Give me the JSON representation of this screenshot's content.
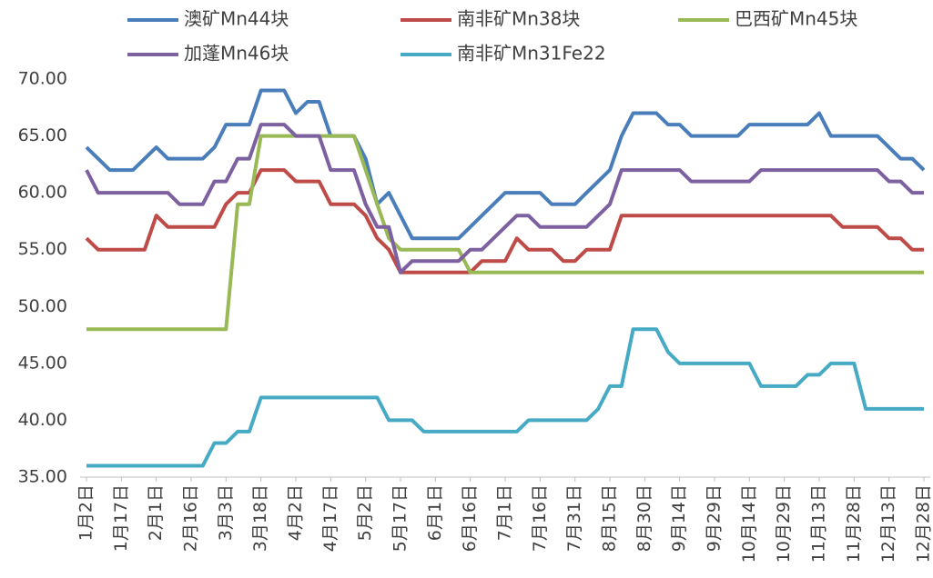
{
  "chart_data": {
    "type": "line",
    "categories": [
      "1月2日",
      null,
      null,
      "1月17日",
      null,
      null,
      "2月1日",
      null,
      null,
      "2月16日",
      null,
      null,
      "3月3日",
      null,
      null,
      "3月18日",
      null,
      null,
      "4月2日",
      null,
      null,
      "4月17日",
      null,
      null,
      "5月2日",
      null,
      null,
      "5月17日",
      null,
      null,
      "6月1日",
      null,
      null,
      "6月16日",
      null,
      null,
      "7月1日",
      null,
      null,
      "7月16日",
      null,
      null,
      "7月31日",
      null,
      null,
      "8月15日",
      null,
      null,
      "8月30日",
      null,
      null,
      "9月14日",
      null,
      null,
      "9月29日",
      null,
      null,
      "10月14日",
      null,
      null,
      "10月29日",
      null,
      null,
      "11月13日",
      null,
      null,
      "11月28日",
      null,
      null,
      "12月13日",
      null,
      null,
      "12月28日"
    ],
    "series": [
      {
        "name": "澳矿Mn44块",
        "color": "#4a7ebb",
        "values": [
          64,
          63,
          62,
          62,
          62,
          63,
          64,
          63,
          63,
          63,
          63,
          64,
          66,
          66,
          66,
          69,
          69,
          69,
          67,
          68,
          68,
          65,
          65,
          65,
          63,
          59,
          60,
          58,
          56,
          56,
          56,
          56,
          56,
          57,
          58,
          59,
          60,
          60,
          60,
          60,
          59,
          59,
          59,
          60,
          61,
          62,
          65,
          67,
          67,
          67,
          66,
          66,
          65,
          65,
          65,
          65,
          65,
          66,
          66,
          66,
          66,
          66,
          66,
          67,
          65,
          65,
          65,
          65,
          65,
          64,
          63,
          63,
          62
        ]
      },
      {
        "name": "南非矿Mn38块",
        "color": "#be4b48",
        "values": [
          56,
          55,
          55,
          55,
          55,
          55,
          58,
          57,
          57,
          57,
          57,
          57,
          59,
          60,
          60,
          62,
          62,
          62,
          61,
          61,
          61,
          59,
          59,
          59,
          58,
          56,
          55,
          53,
          53,
          53,
          53,
          53,
          53,
          53,
          54,
          54,
          54,
          56,
          55,
          55,
          55,
          54,
          54,
          55,
          55,
          55,
          58,
          58,
          58,
          58,
          58,
          58,
          58,
          58,
          58,
          58,
          58,
          58,
          58,
          58,
          58,
          58,
          58,
          58,
          58,
          57,
          57,
          57,
          57,
          56,
          56,
          55,
          55
        ]
      },
      {
        "name": "巴西矿Mn45块",
        "color": "#98b954",
        "values": [
          48,
          48,
          48,
          48,
          48,
          48,
          48,
          48,
          48,
          48,
          48,
          48,
          48,
          59,
          59,
          65,
          65,
          65,
          65,
          65,
          65,
          65,
          65,
          65,
          62,
          59,
          56,
          55,
          55,
          55,
          55,
          55,
          55,
          53,
          53,
          53,
          53,
          53,
          53,
          53,
          53,
          53,
          53,
          53,
          53,
          53,
          53,
          53,
          53,
          53,
          53,
          53,
          53,
          53,
          53,
          53,
          53,
          53,
          53,
          53,
          53,
          53,
          53,
          53,
          53,
          53,
          53,
          53,
          53,
          53,
          53,
          53,
          53
        ]
      },
      {
        "name": "加蓬Mn46块",
        "color": "#7d60a0",
        "values": [
          62,
          60,
          60,
          60,
          60,
          60,
          60,
          60,
          59,
          59,
          59,
          61,
          61,
          63,
          63,
          66,
          66,
          66,
          65,
          65,
          65,
          62,
          62,
          62,
          59,
          57,
          57,
          53,
          54,
          54,
          54,
          54,
          54,
          55,
          55,
          56,
          57,
          58,
          58,
          57,
          57,
          57,
          57,
          57,
          58,
          59,
          62,
          62,
          62,
          62,
          62,
          62,
          61,
          61,
          61,
          61,
          61,
          61,
          62,
          62,
          62,
          62,
          62,
          62,
          62,
          62,
          62,
          62,
          62,
          61,
          61,
          60,
          60
        ]
      },
      {
        "name": "南非矿Mn31Fe22",
        "color": "#46aac5",
        "values": [
          36,
          36,
          36,
          36,
          36,
          36,
          36,
          36,
          36,
          36,
          36,
          38,
          38,
          39,
          39,
          42,
          42,
          42,
          42,
          42,
          42,
          42,
          42,
          42,
          42,
          42,
          40,
          40,
          40,
          39,
          39,
          39,
          39,
          39,
          39,
          39,
          39,
          39,
          40,
          40,
          40,
          40,
          40,
          40,
          41,
          43,
          43,
          48,
          48,
          48,
          46,
          45,
          45,
          45,
          45,
          45,
          45,
          45,
          43,
          43,
          43,
          43,
          44,
          44,
          45,
          45,
          45,
          41,
          41,
          41,
          41,
          41,
          41
        ]
      }
    ],
    "ylim": [
      35,
      70
    ],
    "yticks": [
      {
        "value": 35,
        "label": "35.00"
      },
      {
        "value": 40,
        "label": "40.00"
      },
      {
        "value": 45,
        "label": "45.00"
      },
      {
        "value": 50,
        "label": "50.00"
      },
      {
        "value": 55,
        "label": "55.00"
      },
      {
        "value": 60,
        "label": "60.00"
      },
      {
        "value": 65,
        "label": "65.00"
      },
      {
        "value": 70,
        "label": "70.00"
      }
    ],
    "grid": false,
    "legend": "top"
  }
}
